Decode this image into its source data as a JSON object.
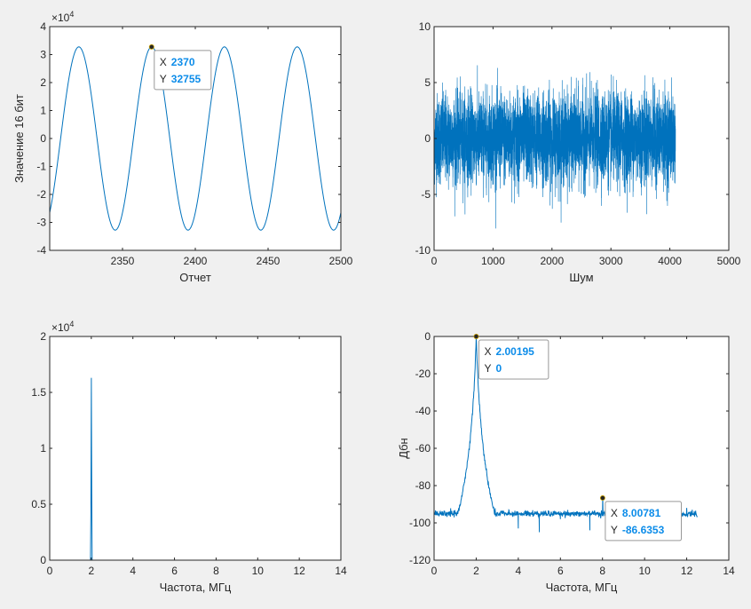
{
  "chart_data": [
    {
      "type": "line",
      "title": "",
      "xlabel": "Отчет",
      "ylabel": "Значение 16 бит",
      "xlim": [
        2300,
        2500
      ],
      "ylim": [
        -40000,
        40000
      ],
      "xticks": [
        2350,
        2400,
        2450,
        2500
      ],
      "yticks": [
        -4,
        -3,
        -2,
        -1,
        0,
        1,
        2,
        3,
        4
      ],
      "yexponent": "10^4",
      "grid": false,
      "series": [
        {
          "function": "sine",
          "amplitude": 32767,
          "period": 50,
          "peak_at": 2370,
          "x_start": 2300,
          "x_end": 2500,
          "color": "#0072BD"
        }
      ],
      "datatip": {
        "x_label": "X",
        "x_value": "2370",
        "y_label": "Y",
        "y_value": "32755",
        "x": 2370,
        "y": 32755
      }
    },
    {
      "type": "line",
      "title": "",
      "xlabel": "Шум",
      "ylabel": "",
      "xlim": [
        0,
        5000
      ],
      "ylim": [
        -10,
        10
      ],
      "xticks": [
        0,
        1000,
        2000,
        3000,
        4000,
        5000
      ],
      "yticks": [
        -10,
        -5,
        0,
        5,
        10
      ],
      "grid": false,
      "series": [
        {
          "description": "gaussian noise",
          "n_points": 4096,
          "x_start": 0,
          "x_end": 4096,
          "std": 2.0,
          "min": -9.0,
          "max": 9.3,
          "color": "#0072BD"
        }
      ]
    },
    {
      "type": "line",
      "title": "",
      "xlabel": "Частота, МГц",
      "ylabel": "",
      "xlim": [
        0,
        14
      ],
      "ylim": [
        0,
        20000
      ],
      "xticks": [
        0,
        2,
        4,
        6,
        8,
        10,
        12,
        14
      ],
      "yticks": [
        0,
        0.5,
        1,
        1.5,
        2
      ],
      "yexponent": "10^4",
      "grid": false,
      "series": [
        {
          "description": "magnitude spectrum",
          "x_end": 12.5,
          "peaks": [
            {
              "x": 2.002,
              "y": 16300
            }
          ],
          "color": "#0072BD"
        }
      ]
    },
    {
      "type": "line",
      "title": "",
      "xlabel": "Частота, МГц",
      "ylabel": "Дбн",
      "xlim": [
        0,
        14
      ],
      "ylim": [
        -120,
        0
      ],
      "xticks": [
        0,
        2,
        4,
        6,
        8,
        10,
        12,
        14
      ],
      "yticks": [
        -120,
        -100,
        -80,
        -60,
        -40,
        -20,
        0
      ],
      "grid": false,
      "series": [
        {
          "description": "normalized spectrum in dB",
          "x_end": 12.5,
          "noise_floor": -109,
          "peaks": [
            {
              "x": 2.002,
              "y": 0
            },
            {
              "x": 4.0,
              "y": -103
            },
            {
              "x": 5.0,
              "y": -105
            },
            {
              "x": 6.0,
              "y": -98
            },
            {
              "x": 7.4,
              "y": -104
            },
            {
              "x": 8.008,
              "y": -86.6
            },
            {
              "x": 9.0,
              "y": -104
            },
            {
              "x": 10.0,
              "y": -95
            },
            {
              "x": 12.0,
              "y": -92
            }
          ],
          "color": "#0072BD"
        }
      ],
      "datatips": [
        {
          "x_label": "X",
          "x_value": "2.00195",
          "y_label": "Y",
          "y_value": "0",
          "x": 2.00195,
          "y": 0
        },
        {
          "x_label": "X",
          "x_value": "8.00781",
          "y_label": "Y",
          "y_value": "-86.6353",
          "x": 8.00781,
          "y": -86.6353
        }
      ]
    }
  ]
}
